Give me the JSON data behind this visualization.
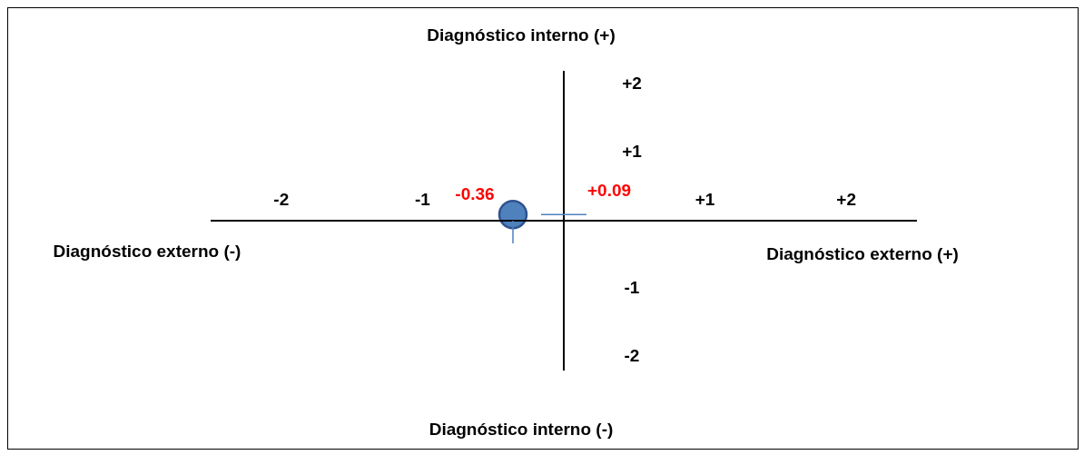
{
  "chart_data": {
    "type": "scatter",
    "marker": "circle",
    "legend": false,
    "xlim": [
      -2.5,
      2.5
    ],
    "ylim": [
      -2.2,
      2.2
    ],
    "xticks": [
      {
        "value": -2,
        "label": "-2"
      },
      {
        "value": -1,
        "label": "-1"
      },
      {
        "value": 1,
        "label": "+1"
      },
      {
        "value": 2,
        "label": "+2"
      }
    ],
    "yticks": [
      {
        "value": 2,
        "label": "+2"
      },
      {
        "value": 1,
        "label": "+1"
      },
      {
        "value": -1,
        "label": "-1"
      },
      {
        "value": -2,
        "label": "-2"
      }
    ],
    "series": [
      {
        "type": "scatter",
        "color": "#4f81bd",
        "x": [
          -0.36
        ],
        "values": [
          0.09
        ]
      }
    ],
    "ref_lines": [
      {
        "axis": "x",
        "value": -0.36,
        "label": "-0.36",
        "color": "#4f81bd"
      },
      {
        "axis": "y",
        "value": 0.09,
        "label": "+0.09",
        "color": "#4f81bd"
      }
    ],
    "annotations": [
      "Diagnóstico interno (+)",
      "Diagnóstico externo (-)",
      "Diagnóstico externo (+)",
      "Diagnóstico interno (-)"
    ]
  }
}
